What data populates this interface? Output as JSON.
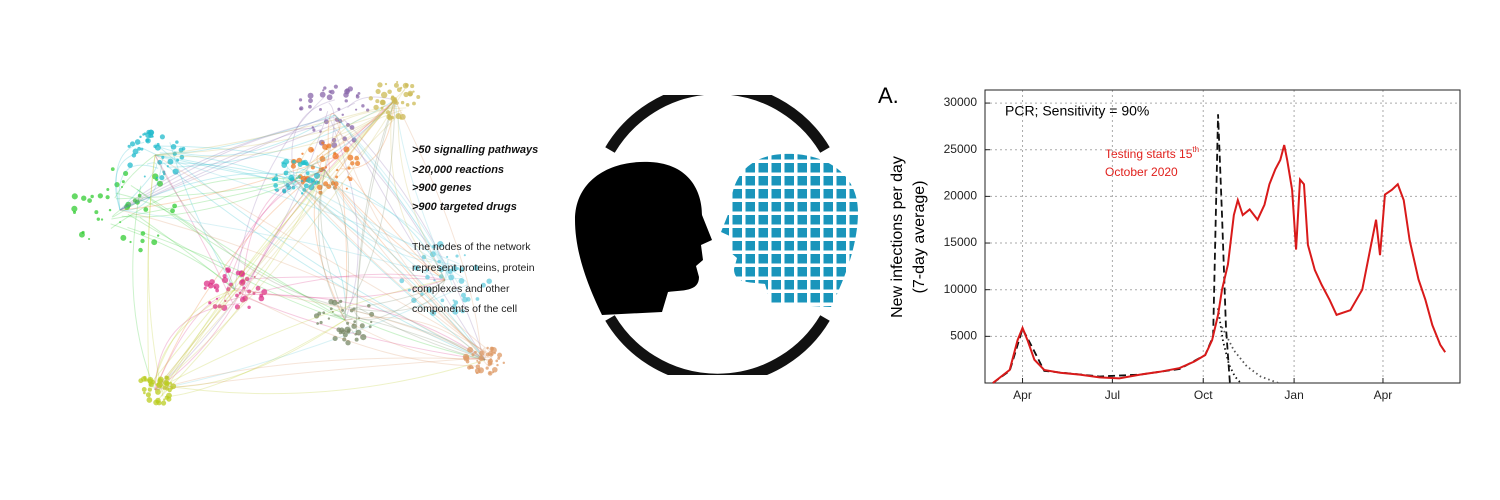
{
  "network_panel": {
    "highlights": [
      ">50 signalling pathways",
      ">20,000 reactions",
      ">900 genes",
      ">900 targeted drugs"
    ],
    "description": [
      "The nodes of the network",
      "represent proteins, protein",
      "complexes and other",
      "components of the cell"
    ]
  },
  "chart_data": {
    "type": "line",
    "panel_label": "A.",
    "annotation": "PCR; Sensitivity = 90%",
    "testing_note": {
      "text": "Testing starts 15",
      "sup": "th",
      "line2": "October 2020"
    },
    "ylabel": [
      "New infections per day",
      "(7-day average)"
    ],
    "xlim": [
      -7,
      474
    ],
    "xticks": [
      {
        "value": 31,
        "label": "Apr"
      },
      {
        "value": 122,
        "label": "Jul"
      },
      {
        "value": 214,
        "label": "Oct"
      },
      {
        "value": 306,
        "label": "Jan"
      },
      {
        "value": 396,
        "label": "Apr"
      }
    ],
    "ylim": [
      0,
      31400
    ],
    "yticks": [
      5000,
      10000,
      15000,
      20000,
      25000,
      30000
    ],
    "grid": true,
    "series": [
      {
        "color": "#d91a1a",
        "style": "solid",
        "x": [
          1,
          18,
          26,
          31,
          36,
          43,
          53,
          69,
          89,
          109,
          129,
          150,
          170,
          190,
          205,
          216,
          223,
          229,
          233,
          239,
          245,
          249,
          254,
          261,
          269,
          276,
          281,
          287,
          292,
          296,
          299,
          304,
          308,
          312,
          316,
          320,
          327,
          334,
          342,
          349,
          363,
          375,
          383,
          389,
          393,
          398,
          405,
          411,
          417,
          423,
          432,
          439,
          446,
          454,
          459
        ],
        "values": [
          0,
          1400,
          4600,
          5900,
          4600,
          2500,
          1400,
          1100,
          900,
          600,
          500,
          900,
          1200,
          1600,
          2300,
          3000,
          4600,
          7300,
          10000,
          12700,
          18000,
          19600,
          18000,
          18600,
          17500,
          19100,
          21300,
          22900,
          23900,
          25500,
          23900,
          20700,
          14300,
          21800,
          21300,
          14800,
          12100,
          10500,
          8900,
          7300,
          7800,
          10000,
          14300,
          17500,
          13700,
          20200,
          20700,
          21300,
          19600,
          15300,
          11100,
          8900,
          6200,
          4100,
          3300
        ]
      },
      {
        "color": "#111111",
        "style": "dashed",
        "x": [
          1,
          18,
          31,
          40,
          53,
          109,
          150,
          190,
          216,
          224,
          229,
          233,
          237,
          241
        ],
        "values": [
          0,
          1300,
          5800,
          4000,
          1300,
          700,
          900,
          1500,
          3000,
          5000,
          28800,
          18000,
          6000,
          0
        ]
      },
      {
        "color": "#111111",
        "style": "dotted",
        "x": [
          229,
          234,
          240,
          246,
          252
        ],
        "values": [
          8000,
          4500,
          2000,
          700,
          0
        ]
      },
      {
        "color": "#555555",
        "style": "dotted",
        "x": [
          233,
          245,
          258,
          272,
          290
        ],
        "values": [
          6000,
          3500,
          1800,
          700,
          0
        ]
      }
    ]
  }
}
